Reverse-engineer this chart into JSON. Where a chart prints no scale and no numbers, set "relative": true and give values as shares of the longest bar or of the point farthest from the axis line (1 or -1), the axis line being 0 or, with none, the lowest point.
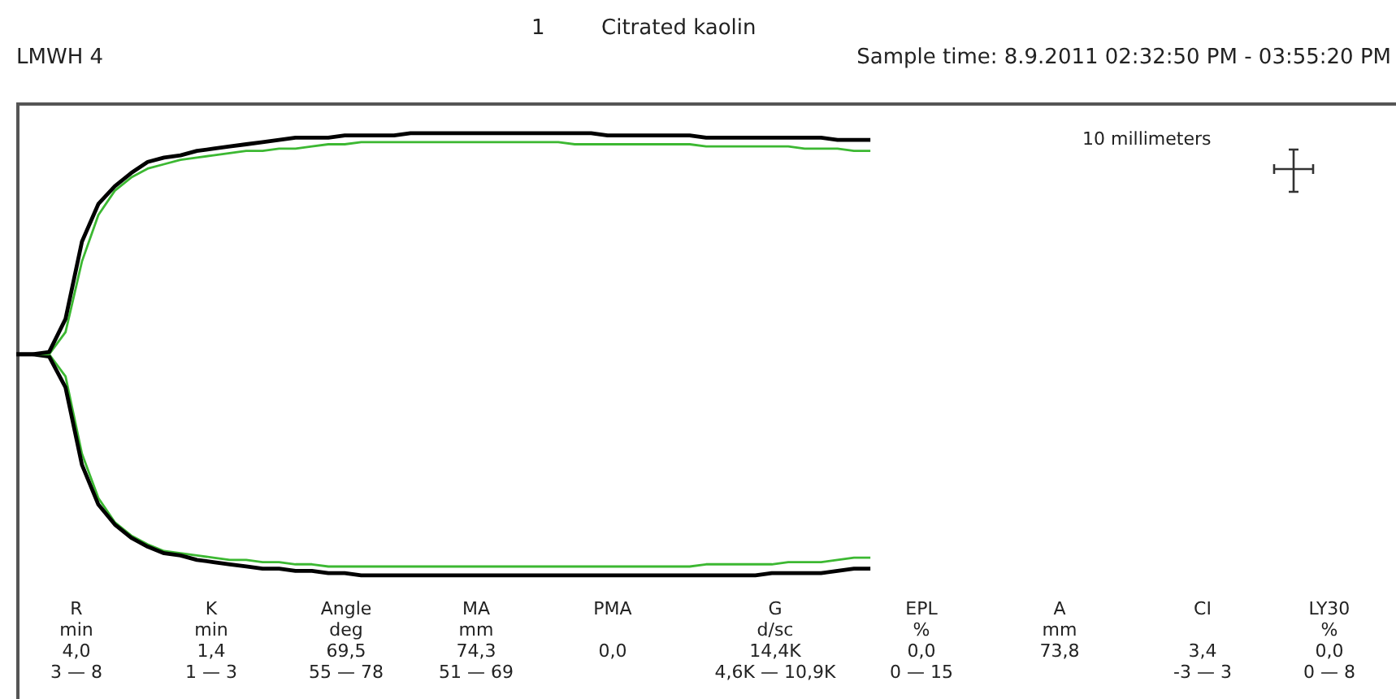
{
  "chart_data": {
    "type": "line",
    "relative": true,
    "legend": false,
    "title": "Citrated kaolin",
    "subtitle": "Sample time: 8.9.2011 02:32:50 PM - 03:55:20 PM",
    "annotations": [
      "1",
      "LMWH 4",
      "10 millimeters",
      "R\nmin\n4,0\n3 — 8",
      "K\nmin\n1,4\n1 — 3",
      "Angle\ndeg\n69,5\n55 — 78",
      "MA\nmm\n74,3\n51 — 69",
      "PMA\n\n0,0\n",
      "G\nd/sc\n14,4K\n4,6K — 10,9K",
      "EPL\n%\n0,0\n0 — 15",
      "A\nmm\n73,8\n",
      "CI\n\n3,4\n-3 — 3",
      "LY30\n%\n0,0\n0 — 8"
    ],
    "categories": [
      null,
      null,
      null,
      null,
      null,
      null,
      null,
      null,
      null,
      null,
      null,
      null,
      null,
      null,
      null,
      null,
      null,
      null,
      null,
      null,
      null,
      null,
      null,
      null,
      null,
      null,
      null,
      null,
      null,
      null,
      null,
      null,
      null,
      null,
      null,
      null,
      null,
      null,
      null,
      null,
      null,
      null,
      null,
      null,
      null,
      null,
      null,
      null,
      null,
      null,
      null,
      null,
      null,
      null,
      null,
      null,
      null,
      null,
      null,
      null,
      null,
      null,
      null,
      null,
      null,
      null,
      null,
      null,
      null,
      null,
      null,
      null,
      null,
      null,
      null,
      null,
      null,
      null,
      null,
      null,
      null,
      null,
      null,
      null,
      null
    ],
    "series": [
      {
        "color": "#000000",
        "values": [
          0.5,
          0.5,
          0.505,
          0.58,
          0.755,
          0.84,
          0.88,
          0.91,
          0.935,
          0.945,
          0.95,
          0.96,
          0.965,
          0.97,
          0.975,
          0.98,
          0.985,
          0.99,
          0.99,
          0.99,
          0.995,
          0.995,
          0.995,
          0.995,
          1,
          1,
          1,
          1,
          1,
          1,
          1,
          1,
          1,
          1,
          1,
          1,
          0.995,
          0.995,
          0.995,
          0.995,
          0.995,
          0.995,
          0.99,
          0.99,
          0.99,
          0.99,
          0.99,
          0.99,
          0.99,
          0.99,
          0.985,
          0.985,
          0.985,
          null,
          null,
          null,
          null,
          null,
          null,
          null,
          null,
          null,
          null,
          null,
          null,
          null,
          null,
          null,
          null,
          null,
          null,
          null,
          null,
          null,
          null,
          null,
          null,
          null,
          null,
          null,
          null,
          null,
          null,
          null,
          null
        ]
      },
      {
        "color": "#3cb832",
        "values": [
          0.5,
          0.5,
          0.5,
          0.55,
          0.71,
          0.815,
          0.87,
          0.9,
          0.92,
          0.93,
          0.94,
          0.945,
          0.95,
          0.955,
          0.96,
          0.96,
          0.965,
          0.965,
          0.97,
          0.975,
          0.975,
          0.98,
          0.98,
          0.98,
          0.98,
          0.98,
          0.98,
          0.98,
          0.98,
          0.98,
          0.98,
          0.98,
          0.98,
          0.98,
          0.975,
          0.975,
          0.975,
          0.975,
          0.975,
          0.975,
          0.975,
          0.975,
          0.97,
          0.97,
          0.97,
          0.97,
          0.97,
          0.97,
          0.965,
          0.965,
          0.965,
          0.96,
          0.96,
          null,
          null,
          null,
          null,
          null,
          null,
          null,
          null,
          null,
          null,
          null,
          null,
          null,
          null,
          null,
          null,
          null,
          null,
          null,
          null,
          null,
          null,
          null,
          null,
          null,
          null,
          null,
          null,
          null,
          null,
          null,
          null
        ]
      },
      {
        "color": "#000000",
        "values": [
          0.5,
          0.5,
          0.495,
          0.425,
          0.25,
          0.16,
          0.115,
          0.085,
          0.065,
          0.05,
          0.045,
          0.035,
          0.03,
          0.025,
          0.02,
          0.015,
          0.015,
          0.01,
          0.01,
          0.005,
          0.005,
          0,
          0,
          0,
          0,
          0,
          0,
          0,
          0,
          0,
          0,
          0,
          0,
          0,
          0,
          0,
          0,
          0,
          0,
          0,
          0,
          0,
          0,
          0,
          0,
          0,
          0.005,
          0.005,
          0.005,
          0.005,
          0.01,
          0.015,
          0.015,
          null,
          null,
          null,
          null,
          null,
          null,
          null,
          null,
          null,
          null,
          null,
          null,
          null,
          null,
          null,
          null,
          null,
          null,
          null,
          null,
          null,
          null,
          null,
          null,
          null,
          null,
          null,
          null,
          null,
          null,
          null,
          null
        ]
      },
      {
        "color": "#3cb832",
        "values": [
          0.5,
          0.5,
          0.5,
          0.45,
          0.275,
          0.175,
          0.12,
          0.09,
          0.07,
          0.055,
          0.05,
          0.045,
          0.04,
          0.035,
          0.035,
          0.03,
          0.03,
          0.025,
          0.025,
          0.02,
          0.02,
          0.02,
          0.02,
          0.02,
          0.02,
          0.02,
          0.02,
          0.02,
          0.02,
          0.02,
          0.02,
          0.02,
          0.02,
          0.02,
          0.02,
          0.02,
          0.02,
          0.02,
          0.02,
          0.02,
          0.02,
          0.02,
          0.025,
          0.025,
          0.025,
          0.025,
          0.025,
          0.03,
          0.03,
          0.03,
          0.035,
          0.04,
          0.04,
          null,
          null,
          null,
          null,
          null,
          null,
          null,
          null,
          null,
          null,
          null,
          null,
          null,
          null,
          null,
          null,
          null,
          null,
          null,
          null,
          null,
          null,
          null,
          null,
          null,
          null,
          null,
          null,
          null,
          null,
          null,
          null
        ]
      }
    ]
  }
}
